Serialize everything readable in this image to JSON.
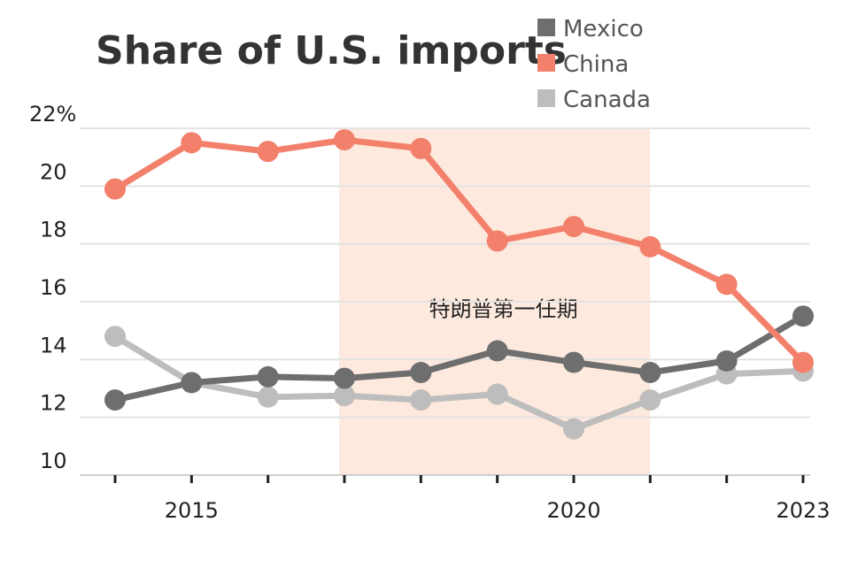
{
  "chart_data": {
    "type": "line",
    "title": "Share of U.S. imports",
    "x": [
      2014,
      2015,
      2016,
      2017,
      2018,
      2019,
      2020,
      2021,
      2022,
      2023
    ],
    "series": [
      {
        "name": "Mexico",
        "color": "#6e6e6e",
        "values": [
          12.6,
          13.2,
          13.4,
          13.35,
          13.55,
          14.3,
          13.9,
          13.55,
          13.95,
          15.5
        ]
      },
      {
        "name": "China",
        "color": "#f2806b",
        "values": [
          19.9,
          21.5,
          21.2,
          21.6,
          21.3,
          18.1,
          18.6,
          17.9,
          16.6,
          13.9
        ]
      },
      {
        "name": "Canada",
        "color": "#bdbdbd",
        "values": [
          14.8,
          13.2,
          12.7,
          12.75,
          12.6,
          12.8,
          11.6,
          12.6,
          13.5,
          13.6
        ]
      }
    ],
    "ylim": [
      10,
      22
    ],
    "y_ticks": [
      10,
      12,
      14,
      16,
      18,
      20,
      22
    ],
    "y_tick_labels": [
      "10",
      "12",
      "14",
      "16",
      "18",
      "20",
      "22%"
    ],
    "x_tick_years": [
      2014,
      2015,
      2016,
      2017,
      2018,
      2019,
      2020,
      2021,
      2022,
      2023
    ],
    "x_tick_labels": [
      {
        "year": 2015,
        "label": "2015"
      },
      {
        "year": 2020,
        "label": "2020"
      },
      {
        "year": 2023,
        "label": "2023"
      }
    ],
    "shaded_region": {
      "start": 2017,
      "end": 2021,
      "color": "#fde9dd",
      "label": "特朗普第一任期"
    },
    "grid": true,
    "legend_position": "top-right"
  }
}
